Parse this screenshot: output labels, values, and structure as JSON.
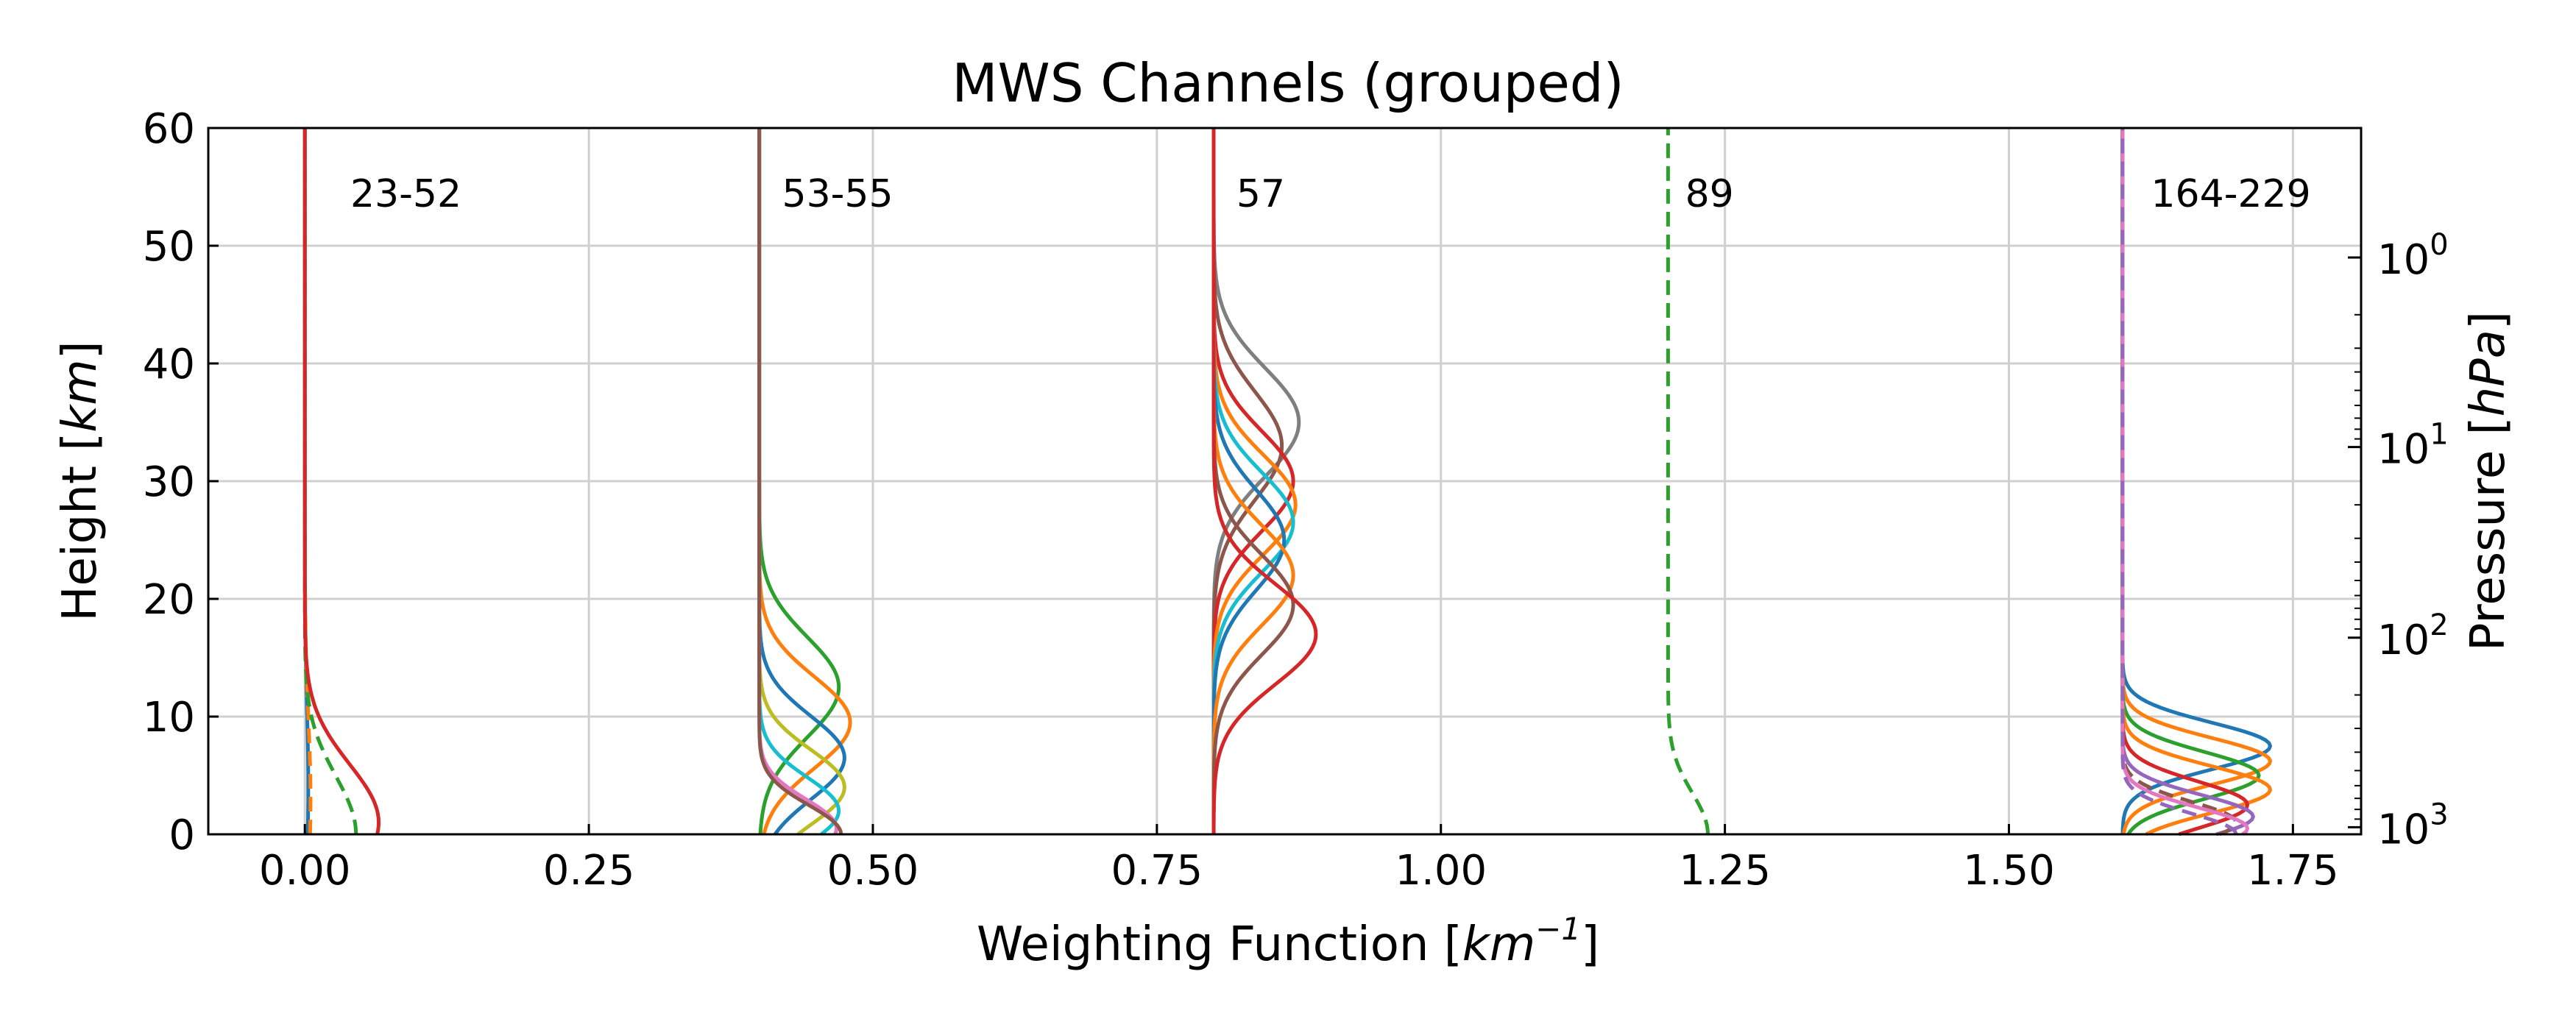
{
  "chart_data": {
    "type": "line",
    "title": "MWS Channels (grouped)",
    "xlabel_text": "Weighting Function [",
    "xlabel_unit": "km",
    "xlabel_exp": "−1",
    "xlabel_close": "]",
    "ylabel_text": "Height [",
    "ylabel_unit": "km",
    "ylabel_close": "]",
    "y2label_text": "Pressure [",
    "y2label_unit": "hPa",
    "y2label_close": "]",
    "xlim": [
      -0.085,
      1.81
    ],
    "ylim": [
      0,
      60
    ],
    "xticks": [
      0.0,
      0.25,
      0.5,
      0.75,
      1.0,
      1.25,
      1.5,
      1.75
    ],
    "xtick_labels": [
      "0.00",
      "0.25",
      "0.50",
      "0.75",
      "1.00",
      "1.25",
      "1.50",
      "1.75"
    ],
    "yticks": [
      0,
      10,
      20,
      30,
      40,
      50,
      60
    ],
    "ytick_labels": [
      "0",
      "10",
      "20",
      "30",
      "40",
      "50",
      "60"
    ],
    "y2_scale": "log",
    "y2_ticks": [
      {
        "height": 49.0,
        "base": "10",
        "exp": "0"
      },
      {
        "height": 32.9,
        "base": "10",
        "exp": "1"
      },
      {
        "height": 16.7,
        "base": "10",
        "exp": "2"
      },
      {
        "height": 0.6,
        "base": "10",
        "exp": "3"
      }
    ],
    "grid": true,
    "group_labels": [
      {
        "text": "23-52",
        "x": 0.04,
        "y": 53.3
      },
      {
        "text": "53-55",
        "x": 0.42,
        "y": 53.3
      },
      {
        "text": "57",
        "x": 0.82,
        "y": 53.3
      },
      {
        "text": "89",
        "x": 1.215,
        "y": 53.3
      },
      {
        "text": "164-229",
        "x": 1.625,
        "y": 53.3
      }
    ],
    "colors": {
      "blue": "#1f77b4",
      "orange": "#ff7f0e",
      "green": "#2ca02c",
      "red": "#d62728",
      "purple": "#9467bd",
      "brown": "#8c564b",
      "pink": "#e377c2",
      "gray": "#7f7f7f",
      "olive": "#bcbd22",
      "cyan": "#17becf"
    },
    "series": [
      {
        "group": "23-52",
        "base": 0.0,
        "peak": 0.003,
        "height": 4,
        "width": 10,
        "color": "#1f77b4",
        "dash": false
      },
      {
        "group": "23-52",
        "base": 0.0,
        "peak": 0.005,
        "height": 3,
        "width": 10,
        "color": "#ff7f0e",
        "dash": true
      },
      {
        "group": "23-52",
        "base": 0.0,
        "peak": 0.045,
        "height": 0,
        "width": 7,
        "color": "#2ca02c",
        "dash": true
      },
      {
        "group": "23-52",
        "base": 0.0,
        "peak": 0.065,
        "height": 1,
        "width": 7,
        "color": "#d62728",
        "dash": false
      },
      {
        "group": "53-55",
        "base": 0.4,
        "peak": 0.07,
        "height": 12.5,
        "width": 6,
        "color": "#2ca02c",
        "dash": false
      },
      {
        "group": "53-55",
        "base": 0.4,
        "peak": 0.08,
        "height": 9.5,
        "width": 5.5,
        "color": "#ff7f0e",
        "dash": false
      },
      {
        "group": "53-55",
        "base": 0.4,
        "peak": 0.075,
        "height": 6.5,
        "width": 5,
        "color": "#1f77b4",
        "dash": false
      },
      {
        "group": "53-55",
        "base": 0.4,
        "peak": 0.075,
        "height": 4,
        "width": 4.5,
        "color": "#bcbd22",
        "dash": false
      },
      {
        "group": "53-55",
        "base": 0.4,
        "peak": 0.07,
        "height": 2,
        "width": 4,
        "color": "#17becf",
        "dash": false
      },
      {
        "group": "53-55",
        "base": 0.4,
        "peak": 0.068,
        "height": 0.5,
        "width": 3.5,
        "color": "#e377c2",
        "dash": false
      },
      {
        "group": "53-55",
        "base": 0.4,
        "peak": 0.072,
        "height": 0,
        "width": 3.5,
        "color": "#8c564b",
        "dash": false
      },
      {
        "group": "57",
        "base": 0.8,
        "peak": 0.075,
        "height": 35,
        "width": 6.5,
        "color": "#7f7f7f",
        "dash": false
      },
      {
        "group": "57",
        "base": 0.8,
        "peak": 0.06,
        "height": 33,
        "width": 6.5,
        "color": "#8c564b",
        "dash": false
      },
      {
        "group": "57",
        "base": 0.8,
        "peak": 0.07,
        "height": 30,
        "width": 6,
        "color": "#d62728",
        "dash": false
      },
      {
        "group": "57",
        "base": 0.8,
        "peak": 0.072,
        "height": 28,
        "width": 6,
        "color": "#ff7f0e",
        "dash": false
      },
      {
        "group": "57",
        "base": 0.8,
        "peak": 0.07,
        "height": 26.5,
        "width": 6,
        "color": "#17becf",
        "dash": false
      },
      {
        "group": "57",
        "base": 0.8,
        "peak": 0.062,
        "height": 25,
        "width": 6,
        "color": "#1f77b4",
        "dash": false
      },
      {
        "group": "57",
        "base": 0.8,
        "peak": 0.07,
        "height": 22,
        "width": 6,
        "color": "#ff7f0e",
        "dash": false
      },
      {
        "group": "57",
        "base": 0.8,
        "peak": 0.07,
        "height": 19.5,
        "width": 6,
        "color": "#8c564b",
        "dash": false
      },
      {
        "group": "57",
        "base": 0.8,
        "peak": 0.09,
        "height": 17,
        "width": 6,
        "color": "#d62728",
        "dash": false
      },
      {
        "group": "89",
        "base": 1.2,
        "peak": 0.035,
        "height": 0,
        "width": 5,
        "color": "#2ca02c",
        "dash": true
      },
      {
        "group": "164-229",
        "base": 1.6,
        "peak": 0.13,
        "height": 7.5,
        "width": 2.8,
        "color": "#1f77b4",
        "dash": false
      },
      {
        "group": "164-229",
        "base": 1.6,
        "peak": 0.13,
        "height": 6.2,
        "width": 2.8,
        "color": "#ff7f0e",
        "dash": false
      },
      {
        "group": "164-229",
        "base": 1.6,
        "peak": 0.12,
        "height": 5,
        "width": 2.8,
        "color": "#2ca02c",
        "dash": false
      },
      {
        "group": "164-229",
        "base": 1.6,
        "peak": 0.13,
        "height": 3.8,
        "width": 2.8,
        "color": "#ff7f0e",
        "dash": false
      },
      {
        "group": "164-229",
        "base": 1.6,
        "peak": 0.11,
        "height": 2.5,
        "width": 2.8,
        "color": "#d62728",
        "dash": false
      },
      {
        "group": "164-229",
        "base": 1.6,
        "peak": 0.115,
        "height": 1.5,
        "width": 2.6,
        "color": "#9467bd",
        "dash": false
      },
      {
        "group": "164-229",
        "base": 1.6,
        "peak": 0.1,
        "height": 1.0,
        "width": 2.5,
        "color": "#8c564b",
        "dash": true
      },
      {
        "group": "164-229",
        "base": 1.6,
        "peak": 0.11,
        "height": 0.5,
        "width": 2.5,
        "color": "#e377c2",
        "dash": false
      },
      {
        "group": "164-229",
        "base": 1.6,
        "peak": 0.1,
        "height": 0,
        "width": 2.5,
        "color": "#9467bd",
        "dash": true
      }
    ]
  }
}
